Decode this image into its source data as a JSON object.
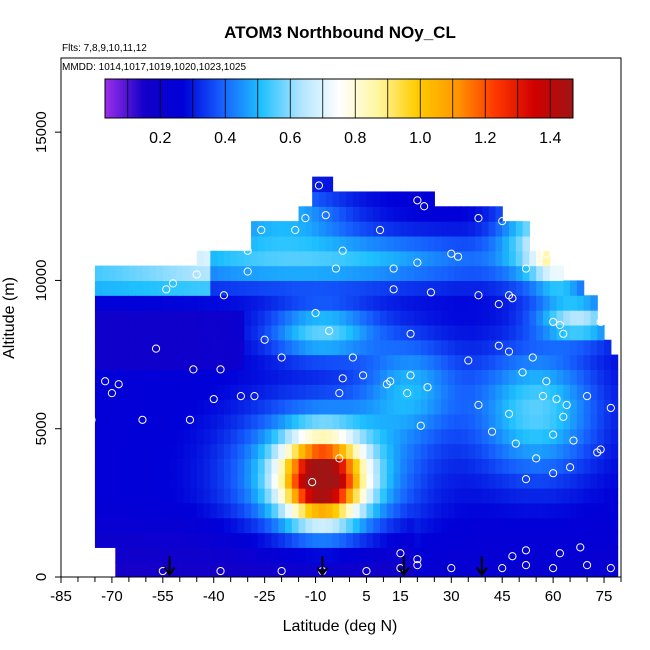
{
  "chart_data": {
    "type": "heatmap",
    "title": "ATOM3 Northbound NOy_CL",
    "subtitle_flights": "Flts: 7,8,9,10,11,12",
    "subtitle_dates": "MMDD: 1014,1017,1019,1020,1023,1025",
    "xlabel": "Latitude (deg N)",
    "ylabel": "Altitude (m)",
    "xlim": [
      -85,
      80
    ],
    "ylim": [
      0,
      17500
    ],
    "x_ticks": [
      -85,
      -70,
      -55,
      -40,
      -25,
      -10,
      5,
      15,
      30,
      45,
      60,
      75
    ],
    "y_ticks": [
      0,
      5000,
      10000,
      15000
    ],
    "colorbar": {
      "range": [
        0.03,
        1.47
      ],
      "ticks": [
        0.2,
        0.4,
        0.6,
        0.8,
        1.0,
        1.2,
        1.4
      ],
      "tick_labels": [
        "0.2",
        "0.4",
        "0.6",
        "0.8",
        "1.0",
        "1.2",
        "1.4"
      ],
      "colors": [
        "#9d2eea",
        "#1400c8",
        "#0000d8",
        "#1660ff",
        "#1ec0ff",
        "#aee4ff",
        "#ffffff",
        "#fff6a0",
        "#ffcc00",
        "#ff9800",
        "#ff3800",
        "#d00000",
        "#a01414"
      ]
    },
    "curtain": {
      "lat_start": -75,
      "lat_end": 79,
      "lat_step": 2,
      "alt_bins": [
        0,
        500,
        1000,
        1500,
        2000,
        2500,
        3000,
        3500,
        4000,
        4500,
        5000,
        5500,
        6000,
        6500,
        7000,
        7500,
        8000,
        8500,
        9000,
        9500,
        10000,
        10500,
        11000,
        11500,
        12000,
        12500,
        13000,
        13500
      ]
    },
    "flight_markers_lat": [
      -53,
      -8,
      16,
      39
    ],
    "observations": [
      [
        -82,
        7800
      ],
      [
        -72,
        6600
      ],
      [
        -68,
        6500
      ],
      [
        -70,
        6200
      ],
      [
        -76,
        5300
      ],
      [
        -61,
        5300
      ],
      [
        -79,
        10200
      ],
      [
        -72,
        200
      ],
      [
        -55,
        200
      ],
      [
        -38,
        200
      ],
      [
        -20,
        200
      ],
      [
        -8,
        200
      ],
      [
        5,
        200
      ],
      [
        15,
        300
      ],
      [
        20,
        400
      ],
      [
        30,
        300
      ],
      [
        45,
        300
      ],
      [
        52,
        400
      ],
      [
        60,
        300
      ],
      [
        70,
        400
      ],
      [
        77,
        300
      ],
      [
        15,
        800
      ],
      [
        20,
        600
      ],
      [
        52,
        900
      ],
      [
        62,
        800
      ],
      [
        48,
        700
      ],
      [
        68,
        1000
      ],
      [
        -57,
        7700
      ],
      [
        -46,
        7000
      ],
      [
        -38,
        7000
      ],
      [
        -32,
        6100
      ],
      [
        -47,
        5300
      ],
      [
        -40,
        6000
      ],
      [
        -28,
        6100
      ],
      [
        -25,
        8000
      ],
      [
        -20,
        7400
      ],
      [
        -10,
        8900
      ],
      [
        -6,
        8300
      ],
      [
        1,
        7400
      ],
      [
        -3,
        6200
      ],
      [
        4,
        6800
      ],
      [
        11,
        6500
      ],
      [
        12,
        6600
      ],
      [
        18,
        6800
      ],
      [
        23,
        6400
      ],
      [
        17,
        6200
      ],
      [
        21,
        5100
      ],
      [
        35,
        7300
      ],
      [
        44,
        7800
      ],
      [
        47,
        7600
      ],
      [
        51,
        6900
      ],
      [
        54,
        7400
      ],
      [
        58,
        6600
      ],
      [
        61,
        6000
      ],
      [
        64,
        5800
      ],
      [
        70,
        6100
      ],
      [
        74,
        4300
      ],
      [
        77,
        5700
      ],
      [
        63,
        5400
      ],
      [
        60,
        4800
      ],
      [
        66,
        4600
      ],
      [
        73,
        4200
      ],
      [
        55,
        4000
      ],
      [
        52,
        3300
      ],
      [
        60,
        3500
      ],
      [
        65,
        3700
      ],
      [
        49,
        4500
      ],
      [
        42,
        4900
      ],
      [
        38,
        5800
      ],
      [
        47,
        5500
      ],
      [
        57,
        6100
      ],
      [
        -11,
        3200
      ],
      [
        -3,
        4000
      ],
      [
        -2,
        6700
      ],
      [
        -45,
        10200
      ],
      [
        -52,
        9900
      ],
      [
        -54,
        9700
      ],
      [
        -37,
        9500
      ],
      [
        -30,
        11000
      ],
      [
        -26,
        11700
      ],
      [
        -16,
        11700
      ],
      [
        -13,
        12100
      ],
      [
        -7,
        12200
      ],
      [
        -9,
        13200
      ],
      [
        -30,
        10300
      ],
      [
        -4,
        10400
      ],
      [
        -2,
        11000
      ],
      [
        9,
        11700
      ],
      [
        20,
        10600
      ],
      [
        22,
        12500
      ],
      [
        30,
        10900
      ],
      [
        32,
        10800
      ],
      [
        38,
        12100
      ],
      [
        45,
        12000
      ],
      [
        38,
        9500
      ],
      [
        48,
        9400
      ],
      [
        47,
        9500
      ],
      [
        52,
        10400
      ],
      [
        55,
        11800
      ],
      [
        58,
        10900
      ],
      [
        60,
        8600
      ],
      [
        62,
        8500
      ],
      [
        74,
        8600
      ],
      [
        63,
        8200
      ],
      [
        44,
        9200
      ],
      [
        24,
        9600
      ],
      [
        13,
        9700
      ],
      [
        13,
        10400
      ],
      [
        18,
        8200
      ],
      [
        20,
        12700
      ],
      [
        -20,
        12600
      ]
    ]
  }
}
